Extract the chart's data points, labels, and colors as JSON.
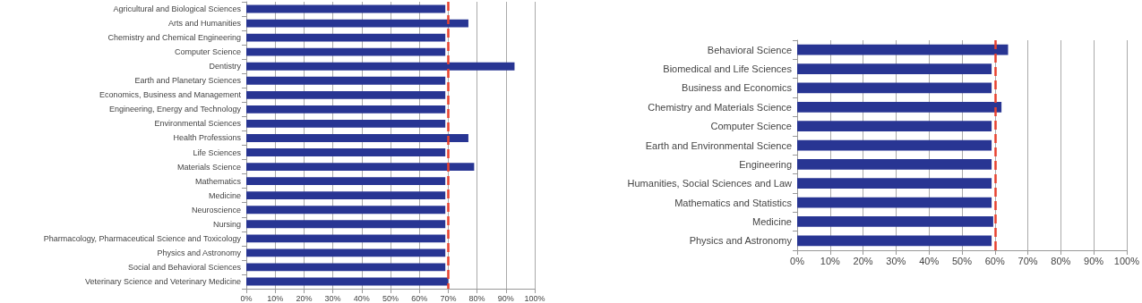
{
  "chart_data": [
    {
      "type": "bar",
      "orientation": "horizontal",
      "categories": [
        "Agricultural and Biological Sciences",
        "Arts and Humanities",
        "Chemistry and Chemical Engineering",
        "Computer Science",
        "Dentistry",
        "Earth and Planetary Sciences",
        "Economics, Business and Management",
        "Engineering, Energy and Technology",
        "Environmental Sciences",
        "Health Professions",
        "Life Sciences",
        "Materials Science",
        "Mathematics",
        "Medicine",
        "Neuroscience",
        "Nursing",
        "Pharmacology, Pharmaceutical Science and Toxicology",
        "Physics and Astronomy",
        "Social and Behavioral Sciences",
        "Veterinary Science and Veterinary Medicine"
      ],
      "values": [
        69,
        77,
        69,
        69,
        93,
        69,
        69,
        69,
        69,
        77,
        69,
        79,
        69,
        69,
        69,
        69,
        69,
        69,
        69,
        70
      ],
      "color": "#283593",
      "xlim": [
        0,
        100
      ],
      "xticks": [
        {
          "value": 0,
          "label": "0%"
        },
        {
          "value": 10,
          "label": "10%"
        },
        {
          "value": 20,
          "label": "20%"
        },
        {
          "value": 30,
          "label": "30%"
        },
        {
          "value": 40,
          "label": "40%"
        },
        {
          "value": 50,
          "label": "50%"
        },
        {
          "value": 60,
          "label": "60%"
        },
        {
          "value": 70,
          "label": "70%"
        },
        {
          "value": 80,
          "label": "80%"
        },
        {
          "value": 90,
          "label": "90%"
        },
        {
          "value": 100,
          "label": "100%"
        }
      ],
      "grid": "x",
      "ref_lines": [
        {
          "axis": "x",
          "value": 70,
          "color": "#e8412f",
          "line_style": "dashed"
        }
      ]
    },
    {
      "type": "bar",
      "orientation": "horizontal",
      "categories": [
        "Behavioral Science",
        "Biomedical and Life Sciences",
        "Business and Economics",
        "Chemistry and Materials Science",
        "Computer Science",
        "Earth and Environmental Science",
        "Engineering",
        "Humanities, Social Sciences and Law",
        "Mathematics and Statistics",
        "Medicine",
        "Physics and Astronomy"
      ],
      "values": [
        64,
        59,
        59,
        62,
        59,
        59,
        59,
        59,
        59,
        59.5,
        59
      ],
      "color": "#283593",
      "xlim": [
        0,
        100
      ],
      "xticks": [
        {
          "value": 0,
          "label": "0%"
        },
        {
          "value": 10,
          "label": "10%"
        },
        {
          "value": 20,
          "label": "20%"
        },
        {
          "value": 30,
          "label": "30%"
        },
        {
          "value": 40,
          "label": "40%"
        },
        {
          "value": 50,
          "label": "50%"
        },
        {
          "value": 60,
          "label": "60%"
        },
        {
          "value": 70,
          "label": "70%"
        },
        {
          "value": 80,
          "label": "80%"
        },
        {
          "value": 90,
          "label": "90%"
        },
        {
          "value": 100,
          "label": "100%"
        }
      ],
      "grid": "x",
      "ref_lines": [
        {
          "axis": "x",
          "value": 60,
          "color": "#e8412f",
          "line_style": "dashed"
        }
      ]
    }
  ]
}
